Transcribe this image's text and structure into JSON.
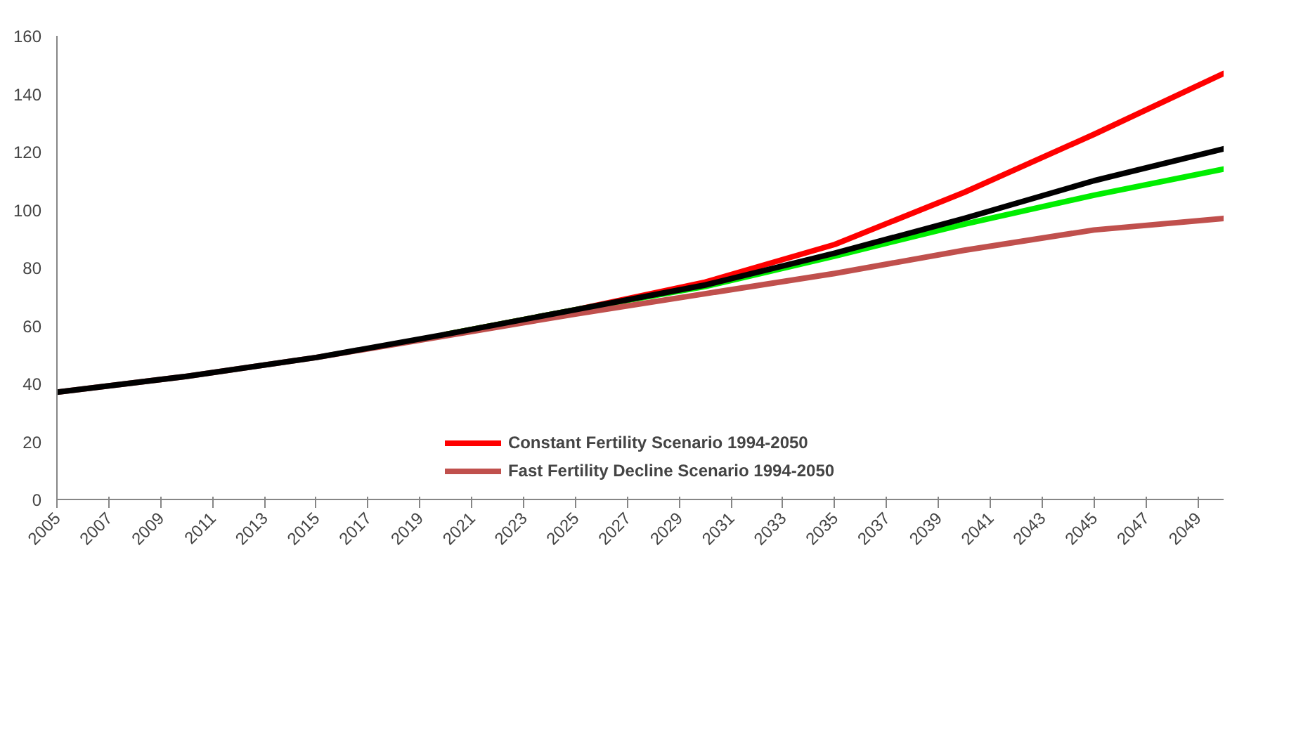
{
  "chart_data": {
    "type": "line",
    "x": [
      2005,
      2010,
      2015,
      2020,
      2025,
      2030,
      2035,
      2040,
      2045,
      2050
    ],
    "series": [
      {
        "name": "Constant Fertility Scenario 1994-2050",
        "color": "#ff0000",
        "values": [
          null,
          null,
          null,
          57,
          65.5,
          75,
          88,
          106,
          126,
          147
        ]
      },
      {
        "color": "#00ee00",
        "values": [
          null,
          null,
          null,
          57,
          65.5,
          73.5,
          84,
          95,
          105,
          114
        ]
      },
      {
        "name": "Fast Fertility Decline Scenario 1994-2050",
        "color": "#c0504d",
        "values": [
          37,
          42.5,
          49,
          56.5,
          64,
          71,
          78,
          86,
          93,
          97
        ]
      },
      {
        "color": "#000000",
        "values": [
          37,
          42.5,
          49,
          57,
          65.5,
          74,
          85,
          97,
          110,
          121
        ]
      }
    ],
    "xlim": [
      2005,
      2050
    ],
    "xticks": [
      2005,
      2007,
      2009,
      2011,
      2013,
      2015,
      2017,
      2019,
      2021,
      2023,
      2025,
      2027,
      2029,
      2031,
      2033,
      2035,
      2037,
      2039,
      2041,
      2043,
      2045,
      2047,
      2049
    ],
    "ylim": [
      0,
      160
    ],
    "yticks": [
      0,
      20,
      40,
      60,
      80,
      100,
      120,
      140,
      160
    ],
    "grid": false,
    "legend": "bottom",
    "marker": "none",
    "line_style": "solid"
  }
}
